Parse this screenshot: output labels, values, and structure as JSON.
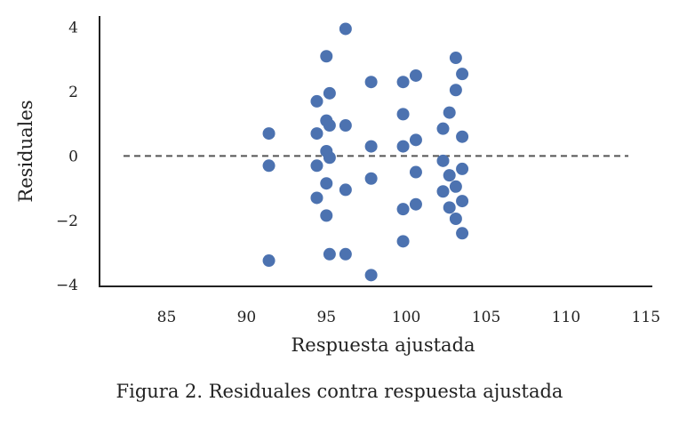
{
  "caption": "Figura 2. Residuales contra respuesta ajustada",
  "chart_data": {
    "type": "scatter",
    "title": "",
    "xlabel": "Respuesta ajustada",
    "ylabel": "Residuales",
    "xlim": [
      80.8,
      115.4
    ],
    "ylim": [
      -4.05,
      4.35
    ],
    "xticks": [
      85,
      90,
      95,
      100,
      105,
      110,
      115
    ],
    "yticks": [
      -4,
      -2,
      0,
      2,
      4
    ],
    "xtick_labels": [
      "85",
      "90",
      "95",
      "100",
      "105",
      "110",
      "115"
    ],
    "ytick_labels": [
      "−4",
      "−2",
      "0",
      "2",
      "4"
    ],
    "grid": false,
    "reference_line": {
      "y": 0,
      "x_from": 82.3,
      "x_to": 113.9,
      "style": "dashed",
      "color": "#555555"
    },
    "point_color": "#4c72b0",
    "series": [
      {
        "points": [
          [
            91.4,
            0.7
          ],
          [
            91.4,
            -0.3
          ],
          [
            91.4,
            -3.25
          ],
          [
            94.4,
            1.7
          ],
          [
            94.4,
            0.7
          ],
          [
            94.4,
            -0.3
          ],
          [
            94.4,
            -1.3
          ],
          [
            95.0,
            3.1
          ],
          [
            95.0,
            1.1
          ],
          [
            95.0,
            0.15
          ],
          [
            95.0,
            -0.85
          ],
          [
            95.0,
            -1.85
          ],
          [
            95.2,
            1.95
          ],
          [
            95.2,
            0.95
          ],
          [
            95.2,
            -0.05
          ],
          [
            95.2,
            -3.05
          ],
          [
            96.2,
            3.95
          ],
          [
            96.2,
            0.95
          ],
          [
            96.2,
            -1.05
          ],
          [
            96.2,
            -3.05
          ],
          [
            97.8,
            2.3
          ],
          [
            97.8,
            0.3
          ],
          [
            97.8,
            -0.7
          ],
          [
            97.8,
            -3.7
          ],
          [
            99.8,
            2.3
          ],
          [
            99.8,
            1.3
          ],
          [
            99.8,
            0.3
          ],
          [
            99.8,
            -1.65
          ],
          [
            99.8,
            -2.65
          ],
          [
            100.6,
            2.5
          ],
          [
            100.6,
            0.5
          ],
          [
            100.6,
            -0.5
          ],
          [
            100.6,
            -1.5
          ],
          [
            102.3,
            0.85
          ],
          [
            102.3,
            -0.15
          ],
          [
            102.3,
            -1.1
          ],
          [
            102.7,
            1.35
          ],
          [
            102.7,
            -0.6
          ],
          [
            102.7,
            -1.6
          ],
          [
            103.1,
            3.05
          ],
          [
            103.1,
            2.05
          ],
          [
            103.1,
            -0.95
          ],
          [
            103.1,
            -1.95
          ],
          [
            103.5,
            2.55
          ],
          [
            103.5,
            0.6
          ],
          [
            103.5,
            -0.4
          ],
          [
            103.5,
            -1.4
          ],
          [
            103.5,
            -2.4
          ]
        ]
      }
    ]
  }
}
